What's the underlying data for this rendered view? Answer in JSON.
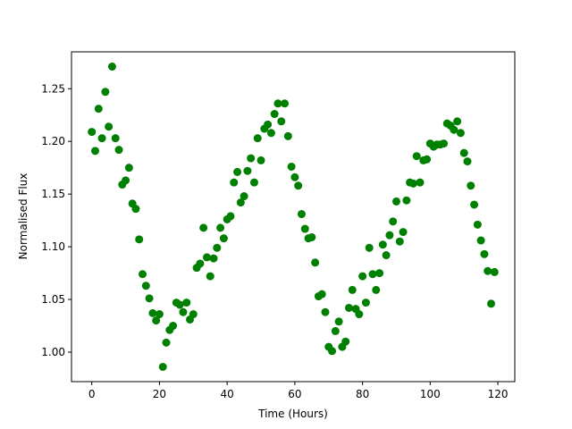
{
  "chart_data": {
    "type": "scatter",
    "xlabel": "Time (Hours)",
    "ylabel": "Normalised Flux",
    "color": "#008000",
    "xlim": [
      -6,
      125
    ],
    "ylim": [
      0.972,
      1.285
    ],
    "xticks": [
      0,
      20,
      40,
      60,
      80,
      100,
      120
    ],
    "yticks": [
      {
        "value": 1,
        "label": "1.00"
      },
      1.05,
      {
        "value": 1.1,
        "label": "1.10"
      },
      1.15,
      {
        "value": 1.2,
        "label": "1.20"
      },
      1.25
    ],
    "x": [
      0,
      1,
      2,
      3,
      4,
      5,
      6,
      7,
      8,
      9,
      10,
      11,
      12,
      13,
      14,
      15,
      16,
      17,
      18,
      19,
      20,
      21,
      22,
      23,
      24,
      25,
      26,
      27,
      28,
      29,
      30,
      31,
      32,
      33,
      34,
      35,
      36,
      37,
      38,
      39,
      40,
      41,
      42,
      43,
      44,
      45,
      46,
      47,
      48,
      49,
      50,
      51,
      52,
      53,
      54,
      55,
      56,
      57,
      58,
      59,
      60,
      61,
      62,
      63,
      64,
      65,
      66,
      67,
      68,
      69,
      70,
      71,
      72,
      73,
      74,
      75,
      76,
      77,
      78,
      79,
      80,
      81,
      82,
      83,
      84,
      85,
      86,
      87,
      88,
      89,
      90,
      91,
      92,
      93,
      94,
      95,
      96,
      97,
      98,
      99,
      100,
      101,
      102,
      103,
      104,
      105,
      106,
      107,
      108,
      109,
      110,
      111,
      112,
      113,
      114,
      115,
      116,
      117,
      118,
      119
    ],
    "y": [
      1.209,
      1.191,
      1.231,
      1.203,
      1.247,
      1.214,
      1.271,
      1.203,
      1.192,
      1.159,
      1.163,
      1.175,
      1.141,
      1.136,
      1.107,
      1.074,
      1.063,
      1.051,
      1.037,
      1.03,
      1.036,
      0.986,
      1.009,
      1.021,
      1.025,
      1.047,
      1.045,
      1.038,
      1.047,
      1.031,
      1.036,
      1.08,
      1.084,
      1.118,
      1.09,
      1.072,
      1.089,
      1.099,
      1.118,
      1.108,
      1.126,
      1.129,
      1.161,
      1.171,
      1.142,
      1.148,
      1.172,
      1.184,
      1.161,
      1.203,
      1.182,
      1.212,
      1.216,
      1.208,
      1.226,
      1.236,
      1.219,
      1.236,
      1.205,
      1.176,
      1.166,
      1.158,
      1.131,
      1.117,
      1.108,
      1.109,
      1.085,
      1.053,
      1.055,
      1.038,
      1.005,
      1.001,
      1.02,
      1.029,
      1.005,
      1.01,
      1.042,
      1.059,
      1.041,
      1.036,
      1.072,
      1.047,
      1.099,
      1.074,
      1.059,
      1.075,
      1.102,
      1.092,
      1.111,
      1.124,
      1.143,
      1.105,
      1.114,
      1.144,
      1.161,
      1.16,
      1.186,
      1.161,
      1.182,
      1.183,
      1.198,
      1.195,
      1.197,
      1.197,
      1.198,
      1.217,
      1.215,
      1.211,
      1.219,
      1.208,
      1.189,
      1.181,
      1.158,
      1.14,
      1.121,
      1.106,
      1.093,
      1.077,
      1.046,
      1.076
    ]
  }
}
